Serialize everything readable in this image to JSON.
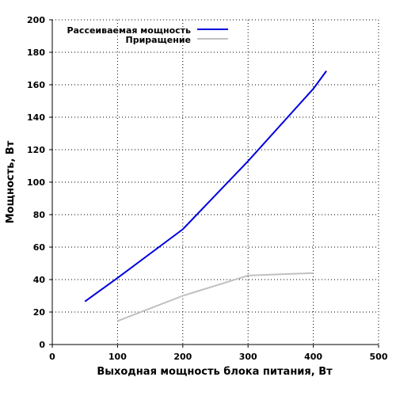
{
  "chart_data": {
    "type": "line",
    "title": "",
    "xlabel": "Выходная мощность блока питания, Вт",
    "ylabel": "Мощность, Вт",
    "xlim": [
      0,
      500
    ],
    "ylim": [
      0,
      200
    ],
    "x_ticks": [
      0,
      100,
      200,
      300,
      400,
      500
    ],
    "y_ticks": [
      0,
      20,
      40,
      60,
      80,
      100,
      120,
      140,
      160,
      180,
      200
    ],
    "grid": true,
    "legend_position": "top",
    "series": [
      {
        "name": "Рассеиваемая мощность",
        "color": "#0000e0",
        "points": [
          [
            50,
            26.5
          ],
          [
            100,
            41
          ],
          [
            200,
            71
          ],
          [
            300,
            113
          ],
          [
            400,
            157.5
          ],
          [
            420,
            168.5
          ]
        ]
      },
      {
        "name": "Приращение",
        "color": "#c0c0c0",
        "points": [
          [
            100,
            14.5
          ],
          [
            200,
            30
          ],
          [
            300,
            42.5
          ],
          [
            400,
            44
          ]
        ]
      }
    ]
  }
}
